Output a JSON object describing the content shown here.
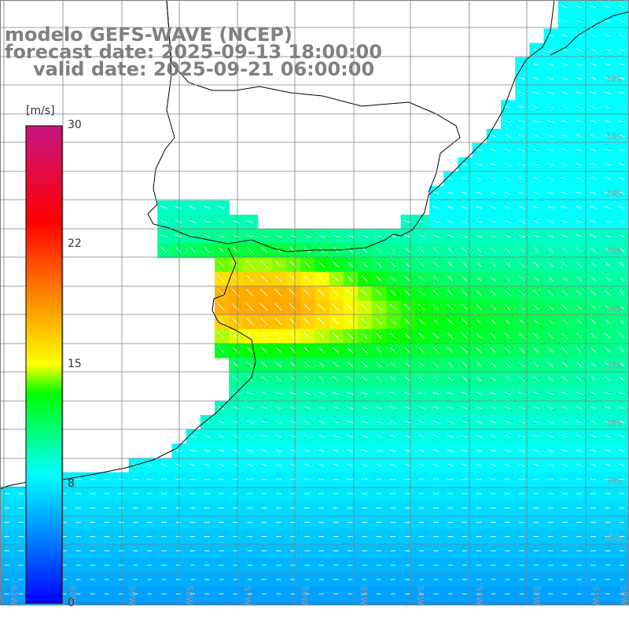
{
  "title": {
    "model": "modelo GEFS-WAVE (NCEP)",
    "forecast": "forecast date: 2025-09-13 18:00:00",
    "valid": "valid date: 2025-09-21 06:00:00"
  },
  "colorbar": {
    "unit": "[m/s]",
    "min": 0,
    "max": 30,
    "tick_labels": [
      "30",
      "22",
      "15",
      "8",
      "0"
    ],
    "tick_values": [
      30,
      22,
      15,
      8,
      0
    ],
    "colors": [
      "#0000ff",
      "#00ffff",
      "#00ff00",
      "#ffff00",
      "#ff8000",
      "#ff0000",
      "#c71585"
    ]
  },
  "lat_labels": [
    "32S",
    "33S",
    "34S",
    "35S",
    "36S",
    "37S",
    "38S",
    "39S",
    "40S"
  ],
  "lon_labels": [
    "61W",
    "60W",
    "59W",
    "58W",
    "57W",
    "56W",
    "55W",
    "54W",
    "53W",
    "52W",
    "51W",
    "50W"
  ],
  "colors": {
    "land": "#ffffff",
    "coast": "#000000",
    "grid": "#808080",
    "vector": "#ffffff"
  }
}
